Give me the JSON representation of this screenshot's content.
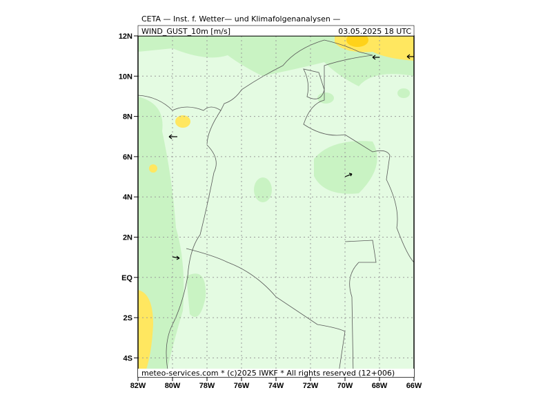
{
  "header": {
    "title": "CETA — Inst. f. Wetter— und Klimafolgenanalysen —",
    "variable": "WIND_GUST_10m [m/s]",
    "date": "03.05.2025 18 UTC"
  },
  "footer": "meteo-services.com * (c)2025 IWKF * All rights reserved (12+006)",
  "lat_labels": [
    "12N",
    "10N",
    "8N",
    "6N",
    "4N",
    "2N",
    "EQ",
    "2S",
    "4S"
  ],
  "lon_labels": [
    "82W",
    "80W",
    "78W",
    "76W",
    "74W",
    "72W",
    "70W",
    "68W",
    "66W"
  ]
}
